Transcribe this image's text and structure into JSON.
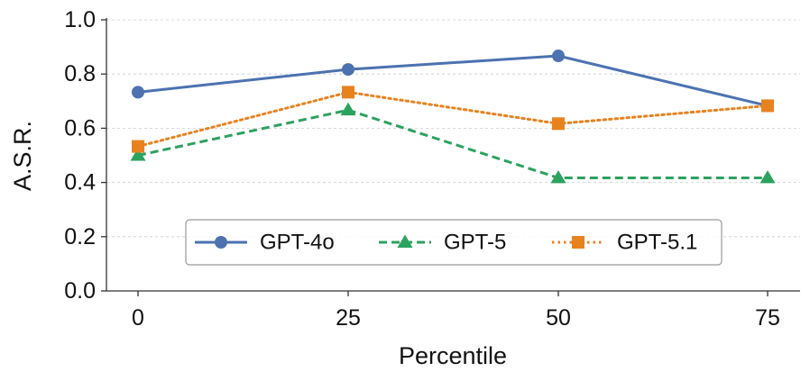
{
  "chart_data": {
    "type": "line",
    "x": [
      0,
      25,
      50,
      75
    ],
    "x_tick_labels": [
      "0",
      "25",
      "50",
      "75"
    ],
    "xlabel": "Percentile",
    "ylabel": "A.S.R.",
    "ylim": [
      0.0,
      1.0
    ],
    "y_ticks": [
      0.0,
      0.2,
      0.4,
      0.6,
      0.8,
      1.0
    ],
    "y_tick_labels": [
      "0.0",
      "0.2",
      "0.4",
      "0.6",
      "0.8",
      "1.0"
    ],
    "grid": "horizontal dashed",
    "legend_position": "lower-center",
    "series": [
      {
        "name": "GPT-4o",
        "values": [
          0.733,
          0.817,
          0.867,
          0.683
        ],
        "color": "#4c72b0",
        "marker": "circle",
        "linestyle": "solid"
      },
      {
        "name": "GPT-5",
        "values": [
          0.5,
          0.667,
          0.417,
          0.417
        ],
        "color": "#2ca25f",
        "marker": "triangle",
        "linestyle": "dashed"
      },
      {
        "name": "GPT-5.1",
        "values": [
          0.533,
          0.733,
          0.617,
          0.683
        ],
        "color": "#e8821f",
        "marker": "square",
        "linestyle": "dotted"
      }
    ]
  }
}
